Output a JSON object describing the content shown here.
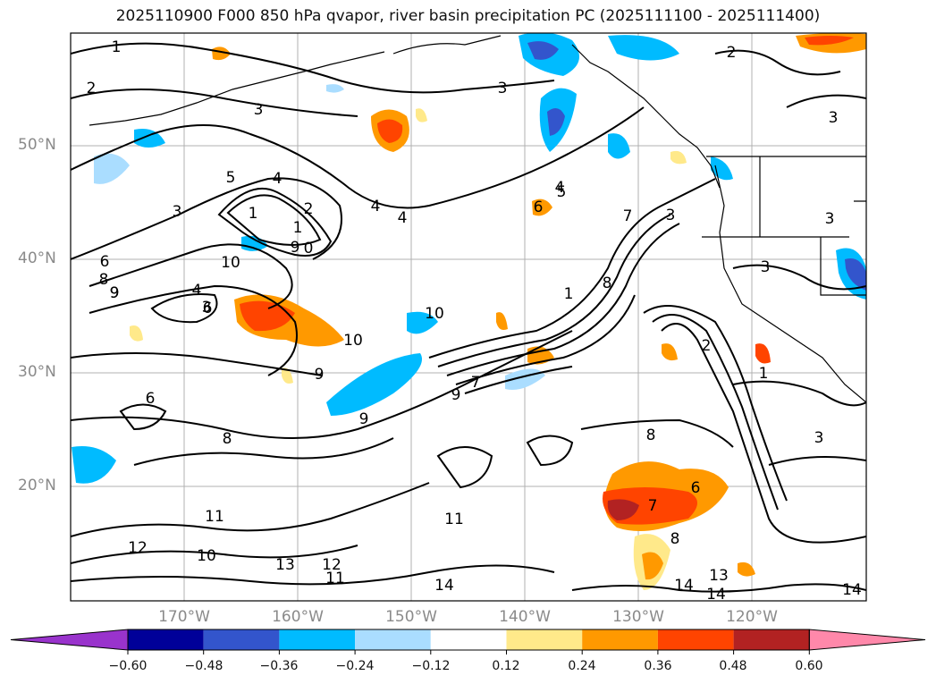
{
  "title": "2025110900 F000 850 hPa qvapor, river basin precipitation PC (2025111100 - 2025111400)",
  "lat_labels": [
    "50°N",
    "40°N",
    "30°N",
    "20°N"
  ],
  "lon_labels": [
    "170°W",
    "160°W",
    "150°W",
    "140°W",
    "130°W",
    "120°W"
  ],
  "colorbar": {
    "colors": [
      "#9933cc",
      "#000099",
      "#3355cc",
      "#00bbff",
      "#aaddff",
      "#ffffff",
      "#ffe98a",
      "#ff9900",
      "#ff4400",
      "#b22222",
      "#ff88aa"
    ],
    "ticks": [
      "−0.60",
      "−0.48",
      "−0.36",
      "−0.24",
      "−0.12",
      "0.12",
      "0.24",
      "0.36",
      "0.48",
      "0.60"
    ]
  },
  "contour_labels": [
    "1",
    "2",
    "3",
    "3",
    "2",
    "3",
    "5",
    "4",
    "1",
    "2",
    "1",
    "0",
    "3",
    "4",
    "4",
    "5",
    "6",
    "7",
    "3",
    "1",
    "6",
    "8",
    "9",
    "4",
    "6",
    "3",
    "10",
    "10",
    "9",
    "8",
    "9",
    "9",
    "9",
    "6",
    "7",
    "8",
    "9",
    "10",
    "11",
    "11",
    "12",
    "13",
    "12",
    "11",
    "10",
    "14",
    "8",
    "6",
    "7",
    "8",
    "13",
    "14",
    "14",
    "14",
    "3",
    "2",
    "1",
    "3",
    "4",
    "3"
  ]
}
